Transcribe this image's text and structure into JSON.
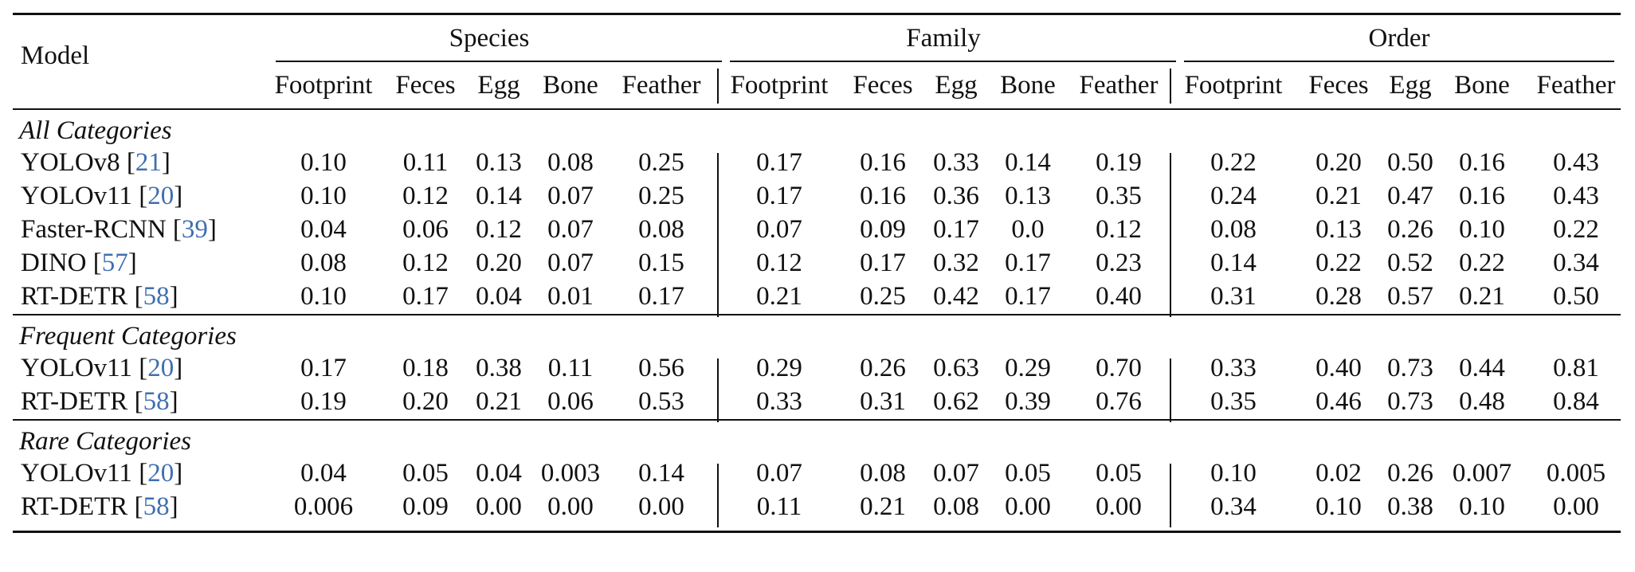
{
  "header": {
    "model": "Model",
    "groups": [
      "Species",
      "Family",
      "Order"
    ],
    "columns": [
      "Footprint",
      "Feces",
      "Egg",
      "Bone",
      "Feather"
    ]
  },
  "sections": [
    {
      "title": "All Categories",
      "rows": [
        {
          "name": "YOLOv8",
          "cite": "21",
          "values": [
            "0.10",
            "0.11",
            "0.13",
            "0.08",
            "0.25",
            "0.17",
            "0.16",
            "0.33",
            "0.14",
            "0.19",
            "0.22",
            "0.20",
            "0.50",
            "0.16",
            "0.43"
          ]
        },
        {
          "name": "YOLOv11",
          "cite": "20",
          "values": [
            "0.10",
            "0.12",
            "0.14",
            "0.07",
            "0.25",
            "0.17",
            "0.16",
            "0.36",
            "0.13",
            "0.35",
            "0.24",
            "0.21",
            "0.47",
            "0.16",
            "0.43"
          ]
        },
        {
          "name": "Faster-RCNN",
          "cite": "39",
          "values": [
            "0.04",
            "0.06",
            "0.12",
            "0.07",
            "0.08",
            "0.07",
            "0.09",
            "0.17",
            "0.0",
            "0.12",
            "0.08",
            "0.13",
            "0.26",
            "0.10",
            "0.22"
          ]
        },
        {
          "name": "DINO",
          "cite": "57",
          "values": [
            "0.08",
            "0.12",
            "0.20",
            "0.07",
            "0.15",
            "0.12",
            "0.17",
            "0.32",
            "0.17",
            "0.23",
            "0.14",
            "0.22",
            "0.52",
            "0.22",
            "0.34"
          ]
        },
        {
          "name": "RT-DETR",
          "cite": "58",
          "values": [
            "0.10",
            "0.17",
            "0.04",
            "0.01",
            "0.17",
            "0.21",
            "0.25",
            "0.42",
            "0.17",
            "0.40",
            "0.31",
            "0.28",
            "0.57",
            "0.21",
            "0.50"
          ]
        }
      ]
    },
    {
      "title": "Frequent Categories",
      "rows": [
        {
          "name": "YOLOv11",
          "cite": "20",
          "values": [
            "0.17",
            "0.18",
            "0.38",
            "0.11",
            "0.56",
            "0.29",
            "0.26",
            "0.63",
            "0.29",
            "0.70",
            "0.33",
            "0.40",
            "0.73",
            "0.44",
            "0.81"
          ]
        },
        {
          "name": "RT-DETR",
          "cite": "58",
          "values": [
            "0.19",
            "0.20",
            "0.21",
            "0.06",
            "0.53",
            "0.33",
            "0.31",
            "0.62",
            "0.39",
            "0.76",
            "0.35",
            "0.46",
            "0.73",
            "0.48",
            "0.84"
          ]
        }
      ]
    },
    {
      "title": "Rare Categories",
      "rows": [
        {
          "name": "YOLOv11",
          "cite": "20",
          "values": [
            "0.04",
            "0.05",
            "0.04",
            "0.003",
            "0.14",
            "0.07",
            "0.08",
            "0.07",
            "0.05",
            "0.05",
            "0.10",
            "0.02",
            "0.26",
            "0.007",
            "0.005"
          ]
        },
        {
          "name": "RT-DETR",
          "cite": "58",
          "values": [
            "0.006",
            "0.09",
            "0.00",
            "0.00",
            "0.00",
            "0.11",
            "0.21",
            "0.08",
            "0.00",
            "0.00",
            "0.34",
            "0.10",
            "0.38",
            "0.10",
            "0.00"
          ]
        }
      ]
    }
  ]
}
